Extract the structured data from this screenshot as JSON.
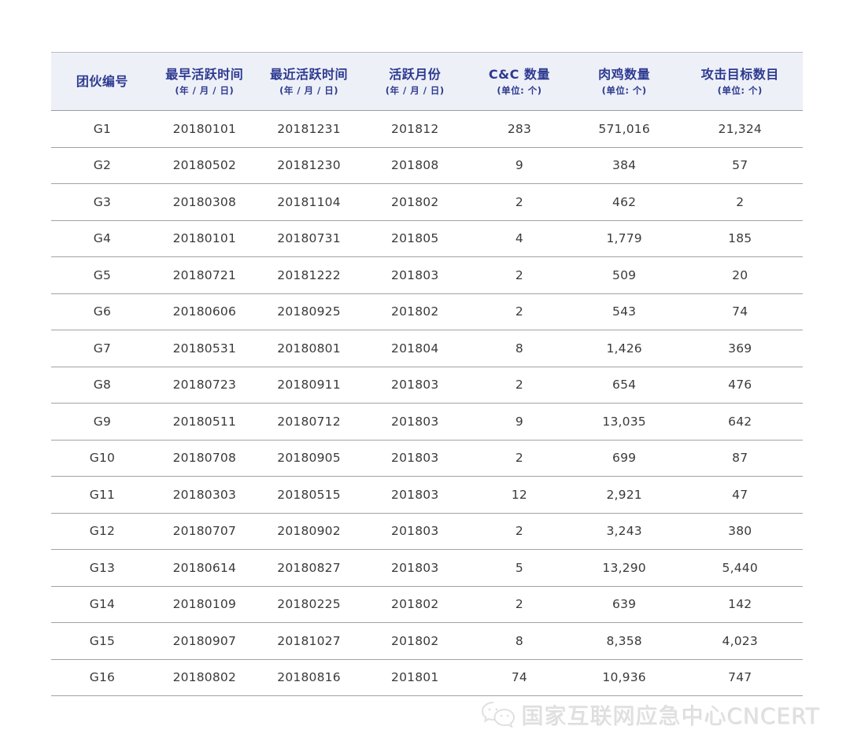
{
  "chart_data": {
    "type": "table",
    "columns": [
      {
        "label": "团伙编号",
        "sub": ""
      },
      {
        "label": "最早活跃时间",
        "sub": "(年 / 月 / 日)"
      },
      {
        "label": "最近活跃时间",
        "sub": "(年 / 月 / 日)"
      },
      {
        "label": "活跃月份",
        "sub": "(年 / 月 / 日)"
      },
      {
        "label": "C&C 数量",
        "sub": "(单位: 个)"
      },
      {
        "label": "肉鸡数量",
        "sub": "(单位: 个)"
      },
      {
        "label": "攻击目标数目",
        "sub": "(单位: 个)"
      }
    ],
    "rows": [
      [
        "G1",
        "20180101",
        "20181231",
        "201812",
        "283",
        "571,016",
        "21,324"
      ],
      [
        "G2",
        "20180502",
        "20181230",
        "201808",
        "9",
        "384",
        "57"
      ],
      [
        "G3",
        "20180308",
        "20181104",
        "201802",
        "2",
        "462",
        "2"
      ],
      [
        "G4",
        "20180101",
        "20180731",
        "201805",
        "4",
        "1,779",
        "185"
      ],
      [
        "G5",
        "20180721",
        "20181222",
        "201803",
        "2",
        "509",
        "20"
      ],
      [
        "G6",
        "20180606",
        "20180925",
        "201802",
        "2",
        "543",
        "74"
      ],
      [
        "G7",
        "20180531",
        "20180801",
        "201804",
        "8",
        "1,426",
        "369"
      ],
      [
        "G8",
        "20180723",
        "20180911",
        "201803",
        "2",
        "654",
        "476"
      ],
      [
        "G9",
        "20180511",
        "20180712",
        "201803",
        "9",
        "13,035",
        "642"
      ],
      [
        "G10",
        "20180708",
        "20180905",
        "201803",
        "2",
        "699",
        "87"
      ],
      [
        "G11",
        "20180303",
        "20180515",
        "201803",
        "12",
        "2,921",
        "47"
      ],
      [
        "G12",
        "20180707",
        "20180902",
        "201803",
        "2",
        "3,243",
        "380"
      ],
      [
        "G13",
        "20180614",
        "20180827",
        "201803",
        "5",
        "13,290",
        "5,440"
      ],
      [
        "G14",
        "20180109",
        "20180225",
        "201802",
        "2",
        "639",
        "142"
      ],
      [
        "G15",
        "20180907",
        "20181027",
        "201802",
        "8",
        "8,358",
        "4,023"
      ],
      [
        "G16",
        "20180802",
        "20180816",
        "201801",
        "74",
        "10,936",
        "747"
      ]
    ]
  },
  "footer": {
    "watermark_text": "国家互联网应急中心CNCERT",
    "watermark_icon": "wechat-icon"
  },
  "colors": {
    "header_bg": "#eef0f8",
    "header_text": "#2d3a90",
    "body_text": "#3a3a3a",
    "divider": "#a0a2a7",
    "watermark": "#e0e0e0"
  }
}
